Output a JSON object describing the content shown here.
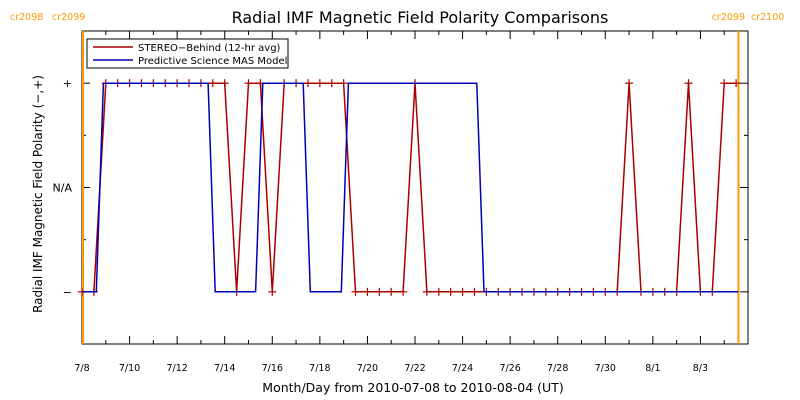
{
  "chart_data": {
    "type": "line",
    "title": "Radial IMF Magnetic Field Polarity Comparisons",
    "xlabel": "Month/Day from 2010-07-08 to 2010-08-04 (UT)",
    "ylabel": "Radial IMF Magnetic Field Polarity (−,+)",
    "x_unit": "day of 2010 (July 8 = day 189)",
    "xlim": [
      189,
      217
    ],
    "ylim": [
      -1.5,
      1.5
    ],
    "x_ticks": [
      {
        "x": 189,
        "label": "7/8"
      },
      {
        "x": 191,
        "label": "7/10"
      },
      {
        "x": 193,
        "label": "7/12"
      },
      {
        "x": 195,
        "label": "7/14"
      },
      {
        "x": 197,
        "label": "7/16"
      },
      {
        "x": 199,
        "label": "7/18"
      },
      {
        "x": 201,
        "label": "7/20"
      },
      {
        "x": 203,
        "label": "7/22"
      },
      {
        "x": 205,
        "label": "7/24"
      },
      {
        "x": 207,
        "label": "7/26"
      },
      {
        "x": 209,
        "label": "7/28"
      },
      {
        "x": 211,
        "label": "7/30"
      },
      {
        "x": 213,
        "label": "8/1"
      },
      {
        "x": 215,
        "label": "8/3"
      }
    ],
    "y_ticks": [
      {
        "y": 1,
        "label": "+"
      },
      {
        "y": 0,
        "label": "N/A"
      },
      {
        "y": -1,
        "label": "−"
      }
    ],
    "markers": [
      {
        "x": 189.0,
        "label_left": "cr2098",
        "label_right": "cr2099",
        "color": "#ff9900"
      },
      {
        "x": 216.6,
        "label_left": "cr2099",
        "label_right": "cr2100",
        "color": "#ff9900"
      }
    ],
    "legend": {
      "position": "top-left"
    },
    "series": [
      {
        "name": "STEREO−Behind (12-hr avg)",
        "color": "#aa0000",
        "marker": "plus",
        "x": [
          189.0,
          189.5,
          190.0,
          190.5,
          191.0,
          191.5,
          192.0,
          192.5,
          193.0,
          193.5,
          194.0,
          194.5,
          195.0,
          195.5,
          196.0,
          196.5,
          197.0,
          197.5,
          198.0,
          198.5,
          199.0,
          199.5,
          200.0,
          200.5,
          201.0,
          201.5,
          202.0,
          202.5,
          203.0,
          203.5,
          204.0,
          204.5,
          205.0,
          205.5,
          206.0,
          206.5,
          207.0,
          207.5,
          208.0,
          208.5,
          209.0,
          209.5,
          210.0,
          210.5,
          211.0,
          211.5,
          212.0,
          212.5,
          213.0,
          213.5,
          214.0,
          214.5,
          215.0,
          215.5,
          216.0,
          216.5
        ],
        "y": [
          -1,
          -1,
          1,
          1,
          1,
          1,
          1,
          1,
          1,
          1,
          1,
          1,
          1,
          -1,
          1,
          1,
          -1,
          1,
          1,
          1,
          1,
          1,
          1,
          -1,
          -1,
          -1,
          -1,
          -1,
          1,
          -1,
          -1,
          -1,
          -1,
          -1,
          -1,
          -1,
          -1,
          -1,
          -1,
          -1,
          -1,
          -1,
          -1,
          -1,
          -1,
          -1,
          1,
          -1,
          -1,
          -1,
          -1,
          1,
          -1,
          -1,
          1,
          1
        ]
      },
      {
        "name": "Predictive Science MAS Model",
        "color": "#0000bb",
        "marker": "none",
        "x": [
          189.0,
          189.6,
          189.9,
          194.3,
          194.6,
          196.3,
          196.6,
          198.3,
          198.6,
          199.9,
          200.2,
          205.6,
          205.9,
          216.6
        ],
        "y": [
          -1,
          -1,
          1,
          1,
          -1,
          -1,
          1,
          1,
          -1,
          -1,
          1,
          1,
          -1,
          -1
        ]
      }
    ]
  }
}
